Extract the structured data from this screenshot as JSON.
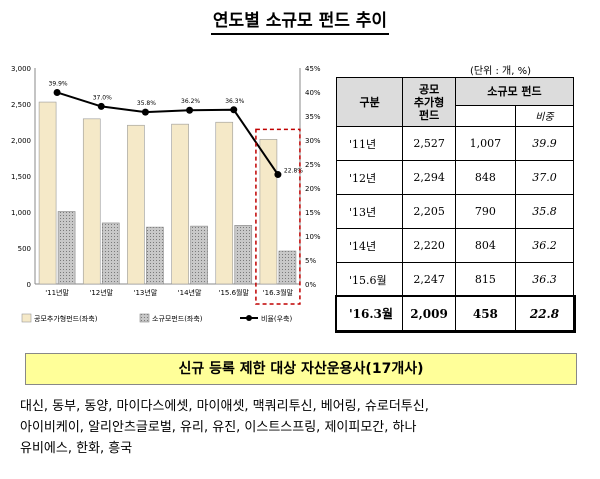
{
  "title": "연도별 소규모 펀드 추이",
  "chart_data": {
    "type": "bar",
    "categories": [
      "'11년말",
      "'12년말",
      "'13년말",
      "'14년말",
      "'15.6월말",
      "'16.3월말"
    ],
    "series": [
      {
        "name": "공모추가형펀드(좌축)",
        "type": "bar",
        "axis": "left",
        "values": [
          2527,
          2294,
          2205,
          2220,
          2247,
          2009
        ],
        "color": "#f5e9c8"
      },
      {
        "name": "소규모펀드(좌축)",
        "type": "bar",
        "axis": "left",
        "values": [
          1007,
          848,
          790,
          804,
          815,
          458
        ],
        "color": "#b8b8b8"
      },
      {
        "name": "비율(우축)",
        "type": "line",
        "axis": "right",
        "values": [
          39.9,
          37.0,
          35.8,
          36.2,
          36.3,
          22.8
        ],
        "labels": [
          "39.9%",
          "37.0%",
          "35.8%",
          "36.2%",
          "36.3%",
          "22.8%"
        ],
        "color": "#000000"
      }
    ],
    "y_left": {
      "range": [
        0,
        3000
      ],
      "ticks": [
        "0",
        "500",
        "1,000",
        "1,500",
        "2,000",
        "2,500",
        "3,000"
      ]
    },
    "y_right": {
      "range": [
        0,
        45
      ],
      "ticks": [
        "0%",
        "5%",
        "10%",
        "15%",
        "20%",
        "25%",
        "30%",
        "35%",
        "40%",
        "45%"
      ]
    },
    "highlight": {
      "category": "'16.3월말",
      "style": "red dashed box"
    },
    "grid": false,
    "legend": "bottom"
  },
  "table": {
    "unit": "(단위 : 개, %)",
    "headers": {
      "col1": "구분",
      "col2": "공모\n추가형\n펀드",
      "col3": "소규모 펀드",
      "col4": "비중"
    },
    "rows": [
      {
        "period": "'11년",
        "public": "2,527",
        "small": "1,007",
        "ratio": "39.9"
      },
      {
        "period": "'12년",
        "public": "2,294",
        "small": "848",
        "ratio": "37.0"
      },
      {
        "period": "'13년",
        "public": "2,205",
        "small": "790",
        "ratio": "35.8"
      },
      {
        "period": "'14년",
        "public": "2,220",
        "small": "804",
        "ratio": "36.2"
      },
      {
        "period": "'15.6월",
        "public": "2,247",
        "small": "815",
        "ratio": "36.3"
      },
      {
        "period": "'16.3월",
        "public": "2,009",
        "small": "458",
        "ratio": "22.8"
      }
    ]
  },
  "restriction": {
    "heading": "신규 등록 제한 대상 자산운용사(17개사)",
    "lines": [
      "대신, 동부, 동양, 마이다스에셋, 마이애셋, 맥쿼리투신, 베어링, 슈로더투신,",
      "아이비케이, 알리안츠글로벌, 유리, 유진, 이스트스프링, 제이피모간, 하나",
      "유비에스, 한화, 흥국"
    ]
  }
}
